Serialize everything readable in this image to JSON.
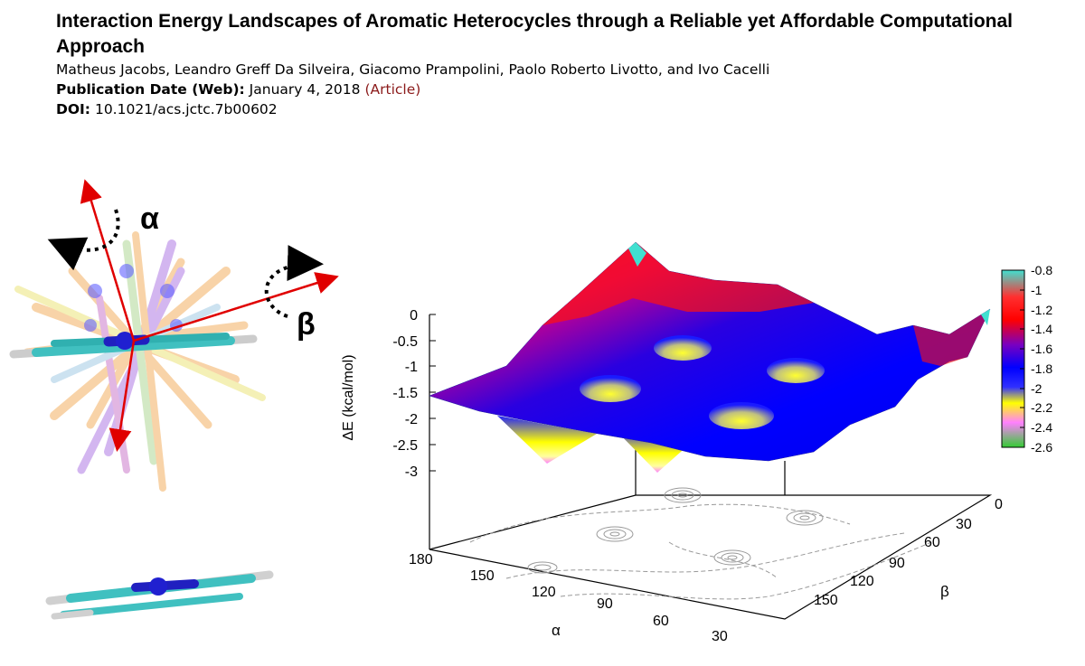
{
  "paper": {
    "title": "Interaction Energy Landscapes of Aromatic Heterocycles through a Reliable yet Affordable Computational Approach",
    "authors": "Matheus Jacobs, Leandro Greff Da Silveira, Giacomo Prampolini, Paolo Roberto Livotto, and Ivo Cacelli",
    "pub_label": "Publication Date (Web):",
    "pub_date": "January 4, 2018",
    "article_type": "(Article)",
    "doi_label": "DOI:",
    "doi": "10.1021/acs.jctc.7b00602"
  },
  "figure": {
    "alpha_symbol": "α",
    "beta_symbol": "β",
    "zlabel": "ΔE (kcal/mol)",
    "xlabel": "α",
    "ylabel": "β",
    "z_ticks": [
      "0",
      "-0.5",
      "-1",
      "-1.5",
      "-2",
      "-2.5",
      "-3"
    ],
    "alpha_ticks": [
      "180",
      "150",
      "120",
      "90",
      "60",
      "30"
    ],
    "beta_ticks": [
      "0",
      "30",
      "60",
      "90",
      "120",
      "150"
    ],
    "colorbar_ticks": [
      "-0.8",
      "-1",
      "-1.2",
      "-1.4",
      "-1.6",
      "-1.8",
      "-2",
      "-2.2",
      "-2.4",
      "-2.6"
    ],
    "colorbar_colors": [
      "#40e0d0",
      "#ff0000",
      "#0000ff",
      "#ffff00",
      "#ff80ff",
      "#33cc33"
    ]
  }
}
